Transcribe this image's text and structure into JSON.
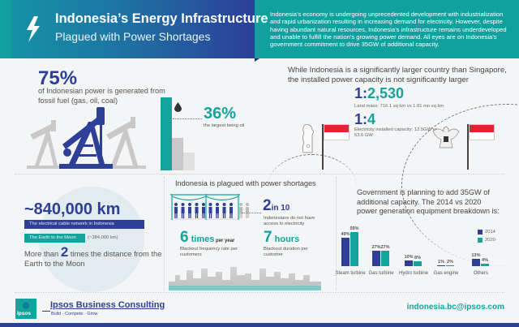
{
  "header": {
    "icon": "lightning-bolt-icon",
    "title": "Indonesia’s Energy Infrastructure",
    "subtitle": "Plagued with Power Shortages",
    "intro": "Indonesia’s economy is undergoing unprecedented development with industrialization and rapid urbanization resulting in increasing demand for electricity. However, despite having abundant natural resources, Indonesia’s infrastructure remains underdeveloped and unable to fulfill the nation’s growing power demand. All eyes are on Indonesia’s government commitment to drive 35GW of additional capacity."
  },
  "fossil": {
    "percent": "75%",
    "description": "of Indonesian power is generated from fossil fuel (gas, oil, coal)",
    "oil_percent": "36%",
    "oil_description": "the largest being oil"
  },
  "comparison": {
    "heading": "While Indonesia is a significantly larger country than Singapore, the installed power capacity is not significantly larger",
    "land_ratio_a": "1:",
    "land_ratio_b": "2,530",
    "land_desc": "Land mass: 716.1 sq km vs 1.81 mn sq km",
    "power_ratio_a": "1:",
    "power_ratio_b": "4",
    "power_desc": "Electricity installed capacity: 12.5GW vs 53.6 GW",
    "colors": {
      "flag_red": "#e02431"
    }
  },
  "cable": {
    "distance": "~840,000 km",
    "network_label": "The electrical cable network in Indonesia",
    "moon_label": "The Earth to the Moon",
    "moon_value": "(~384,000 km)",
    "more_prefix": "More than ",
    "more_number": "2",
    "more_suffix": " times the distance from the Earth to the Moon"
  },
  "shortages": {
    "heading": "Indonesia is plagued with power shortages",
    "no_access_number": "2",
    "no_access_unit": "in 10",
    "no_access_desc": "Indonesians do not have access to electricity",
    "blackout_freq_number": "6",
    "blackout_freq_unit": " times",
    "blackout_freq_suffix": " per year",
    "blackout_freq_desc": "Blackout frequency rate per customers",
    "blackout_dur_number": "7",
    "blackout_dur_unit": " hours",
    "blackout_dur_desc": "Blackout duration per customer"
  },
  "capacity": {
    "heading": "Government is planning to add 35GW of additional capacity. The 2014 vs 2020 power generation equipment breakdown is:"
  },
  "chart_data": {
    "type": "bar",
    "title": "Power generation equipment breakdown 2014 vs 2020",
    "categories": [
      "Steam turbine",
      "Gas turbine",
      "Hydro turbine",
      "Gas engine",
      "Others"
    ],
    "series": [
      {
        "name": "2014",
        "color": "#2e3f97",
        "values": [
          49,
          27,
          10,
          1,
          13
        ],
        "labels": [
          "49%",
          "27%",
          "10%",
          "1%",
          "13%"
        ]
      },
      {
        "name": "2020",
        "color": "#15a39e",
        "values": [
          59,
          27,
          8,
          2,
          4
        ],
        "labels": [
          "59%",
          "27%",
          "8%",
          "2%",
          "4%"
        ]
      }
    ],
    "xlabel": "",
    "ylabel": "",
    "legend_position": "top-right",
    "grid": false
  },
  "footer": {
    "logo_text": "Ipsos",
    "company": "Ipsos Business Consulting",
    "tagline": "Build · Compete · Grow",
    "email": "indonesia.bc@ipsos.com"
  }
}
